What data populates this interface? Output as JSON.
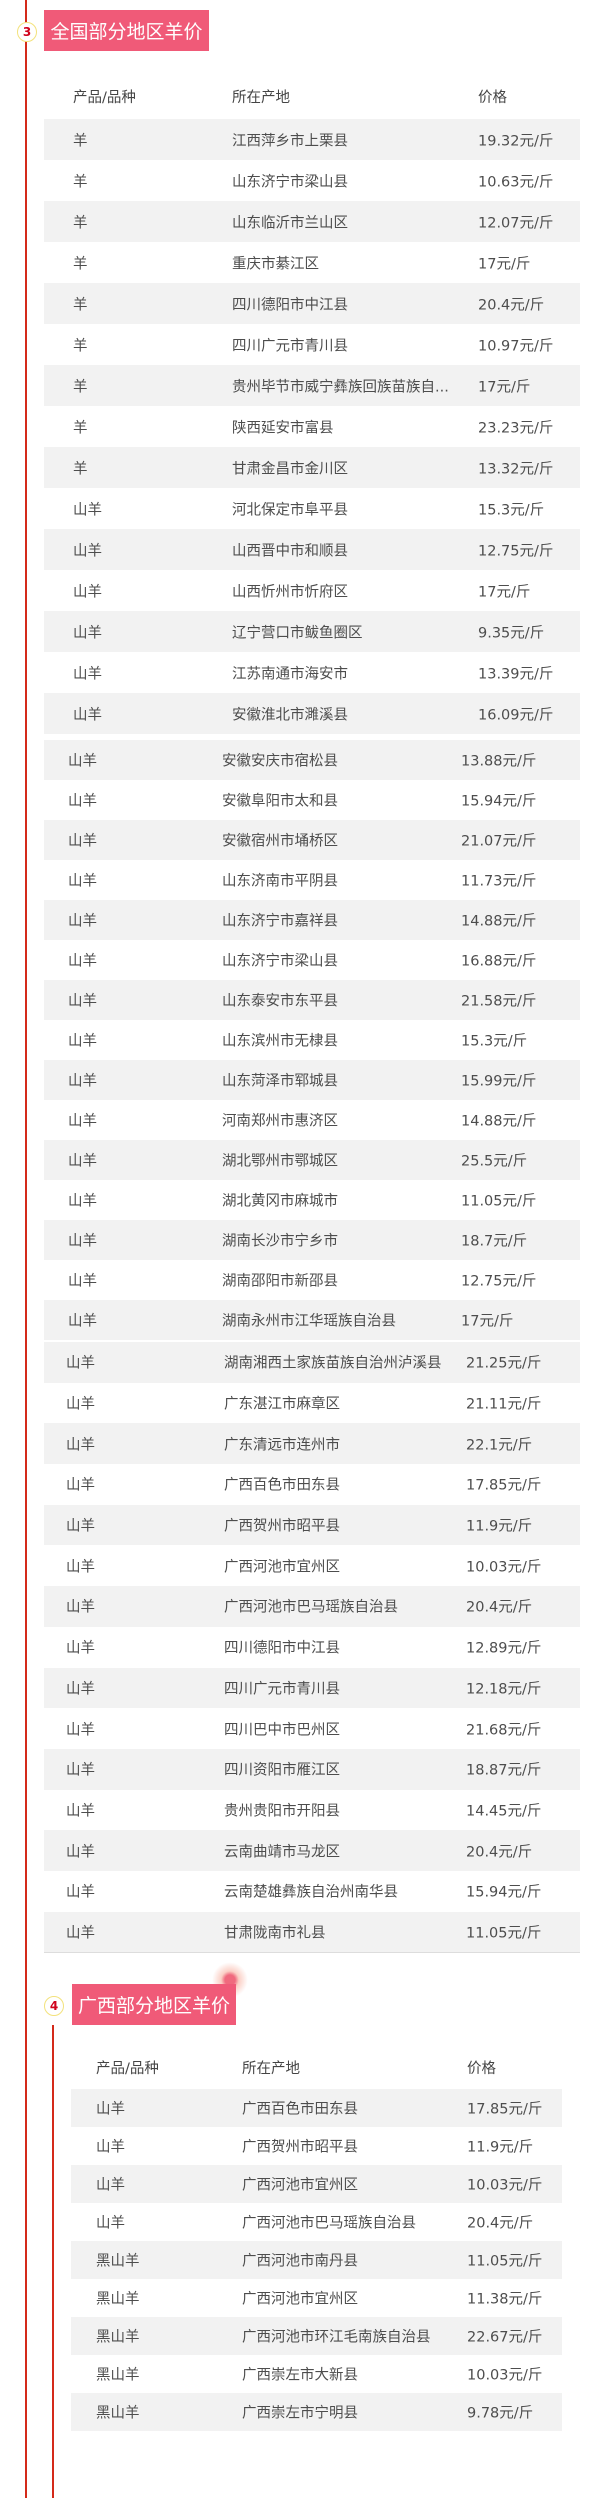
{
  "colors": {
    "badge": "#f05a78",
    "line": "#d42a1a",
    "stripe": "#f2f2f2",
    "number": "#d0021b",
    "ring": "#f3e27c"
  },
  "section3": {
    "number": "3",
    "title": "全国部分地区羊价",
    "headers": [
      "产品/品种",
      "所在产地",
      "价格"
    ],
    "tables": [
      {
        "rows": [
          [
            "羊",
            "江西萍乡市上栗县",
            "19.32元/斤"
          ],
          [
            "羊",
            "山东济宁市梁山县",
            "10.63元/斤"
          ],
          [
            "羊",
            "山东临沂市兰山区",
            "12.07元/斤"
          ],
          [
            "羊",
            "重庆市綦江区",
            "17元/斤"
          ],
          [
            "羊",
            "四川德阳市中江县",
            "20.4元/斤"
          ],
          [
            "羊",
            "四川广元市青川县",
            "10.97元/斤"
          ],
          [
            "羊",
            "贵州毕节市威宁彝族回族苗族自...",
            "17元/斤"
          ],
          [
            "羊",
            "陕西延安市富县",
            "23.23元/斤"
          ],
          [
            "羊",
            "甘肃金昌市金川区",
            "13.32元/斤"
          ],
          [
            "山羊",
            "河北保定市阜平县",
            "15.3元/斤"
          ],
          [
            "山羊",
            "山西晋中市和顺县",
            "12.75元/斤"
          ],
          [
            "山羊",
            "山西忻州市忻府区",
            "17元/斤"
          ],
          [
            "山羊",
            "辽宁营口市鲅鱼圈区",
            "9.35元/斤"
          ],
          [
            "山羊",
            "江苏南通市海安市",
            "13.39元/斤"
          ],
          [
            "山羊",
            "安徽淮北市濉溪县",
            "16.09元/斤"
          ]
        ]
      },
      {
        "rows": [
          [
            "山羊",
            "安徽安庆市宿松县",
            "13.88元/斤"
          ],
          [
            "山羊",
            "安徽阜阳市太和县",
            "15.94元/斤"
          ],
          [
            "山羊",
            "安徽宿州市埇桥区",
            "21.07元/斤"
          ],
          [
            "山羊",
            "山东济南市平阴县",
            "11.73元/斤"
          ],
          [
            "山羊",
            "山东济宁市嘉祥县",
            "14.88元/斤"
          ],
          [
            "山羊",
            "山东济宁市梁山县",
            "16.88元/斤"
          ],
          [
            "山羊",
            "山东泰安市东平县",
            "21.58元/斤"
          ],
          [
            "山羊",
            "山东滨州市无棣县",
            "15.3元/斤"
          ],
          [
            "山羊",
            "山东菏泽市郓城县",
            "15.99元/斤"
          ],
          [
            "山羊",
            "河南郑州市惠济区",
            "14.88元/斤"
          ],
          [
            "山羊",
            "湖北鄂州市鄂城区",
            "25.5元/斤"
          ],
          [
            "山羊",
            "湖北黄冈市麻城市",
            "11.05元/斤"
          ],
          [
            "山羊",
            "湖南长沙市宁乡市",
            "18.7元/斤"
          ],
          [
            "山羊",
            "湖南邵阳市新邵县",
            "12.75元/斤"
          ],
          [
            "山羊",
            "湖南永州市江华瑶族自治县",
            "17元/斤"
          ]
        ]
      },
      {
        "rows": [
          [
            "山羊",
            "湖南湘西土家族苗族自治州泸溪县",
            "21.25元/斤"
          ],
          [
            "山羊",
            "广东湛江市麻章区",
            "21.11元/斤"
          ],
          [
            "山羊",
            "广东清远市连州市",
            "22.1元/斤"
          ],
          [
            "山羊",
            "广西百色市田东县",
            "17.85元/斤"
          ],
          [
            "山羊",
            "广西贺州市昭平县",
            "11.9元/斤"
          ],
          [
            "山羊",
            "广西河池市宜州区",
            "10.03元/斤"
          ],
          [
            "山羊",
            "广西河池市巴马瑶族自治县",
            "20.4元/斤"
          ],
          [
            "山羊",
            "四川德阳市中江县",
            "12.89元/斤"
          ],
          [
            "山羊",
            "四川广元市青川县",
            "12.18元/斤"
          ],
          [
            "山羊",
            "四川巴中市巴州区",
            "21.68元/斤"
          ],
          [
            "山羊",
            "四川资阳市雁江区",
            "18.87元/斤"
          ],
          [
            "山羊",
            "贵州贵阳市开阳县",
            "14.45元/斤"
          ],
          [
            "山羊",
            "云南曲靖市马龙区",
            "20.4元/斤"
          ],
          [
            "山羊",
            "云南楚雄彝族自治州南华县",
            "15.94元/斤"
          ],
          [
            "山羊",
            "甘肃陇南市礼县",
            "11.05元/斤"
          ]
        ]
      }
    ]
  },
  "section4": {
    "number": "4",
    "title": "广西部分地区羊价",
    "headers": [
      "产品/品种",
      "所在产地",
      "价格"
    ],
    "rows": [
      [
        "山羊",
        "广西百色市田东县",
        "17.85元/斤"
      ],
      [
        "山羊",
        "广西贺州市昭平县",
        "11.9元/斤"
      ],
      [
        "山羊",
        "广西河池市宜州区",
        "10.03元/斤"
      ],
      [
        "山羊",
        "广西河池市巴马瑶族自治县",
        "20.4元/斤"
      ],
      [
        "黑山羊",
        "广西河池市南丹县",
        "11.05元/斤"
      ],
      [
        "黑山羊",
        "广西河池市宜州区",
        "11.38元/斤"
      ],
      [
        "黑山羊",
        "广西河池市环江毛南族自治县",
        "22.67元/斤"
      ],
      [
        "黑山羊",
        "广西崇左市大新县",
        "10.03元/斤"
      ],
      [
        "黑山羊",
        "广西崇左市宁明县",
        "9.78元/斤"
      ]
    ]
  }
}
